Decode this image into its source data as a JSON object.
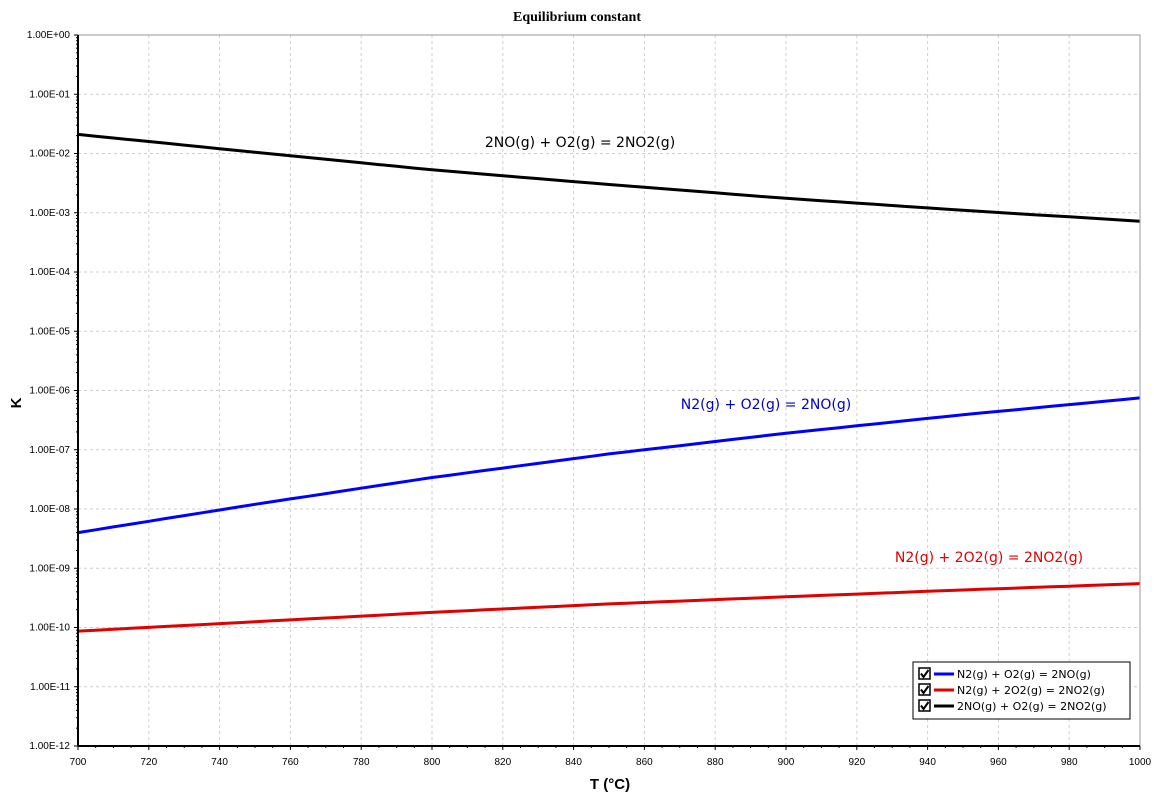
{
  "chart_data": {
    "type": "line",
    "title": "Equilibrium constant",
    "xlabel": "T (°C)",
    "ylabel": "K",
    "x_scale": "linear",
    "y_scale": "log",
    "xlim": [
      700,
      1000
    ],
    "ylim": [
      1e-12,
      1
    ],
    "x_ticks": [
      "700",
      "720",
      "740",
      "760",
      "780",
      "800",
      "820",
      "840",
      "860",
      "880",
      "900",
      "920",
      "940",
      "960",
      "980",
      "1000"
    ],
    "y_ticks": [
      "1.00E-12",
      "1.00E-11",
      "1.00E-10",
      "1.00E-09",
      "1.00E-08",
      "1.00E-07",
      "1.00E-06",
      "1.00E-05",
      "1.00E-04",
      "1.00E-03",
      "1.00E-02",
      "1.00E-01",
      "1.00E+00"
    ],
    "grid": true,
    "legend_position": "bottom-right",
    "series": [
      {
        "name": "N2(g) + O2(g) = 2NO(g)",
        "color": "#0000ff",
        "x": [
          700,
          750,
          800,
          850,
          900,
          950,
          1000
        ],
        "y": [
          4e-09,
          1.2e-08,
          3.4e-08,
          8.5e-08,
          1.9e-07,
          3.9e-07,
          7.5e-07
        ]
      },
      {
        "name": "N2(g) + 2O2(g) = 2NO2(g)",
        "color": "#e00000",
        "x": [
          700,
          750,
          800,
          850,
          900,
          950,
          1000
        ],
        "y": [
          8.7e-11,
          1.25e-10,
          1.8e-10,
          2.5e-10,
          3.3e-10,
          4.3e-10,
          5.5e-10
        ]
      },
      {
        "name": "2NO(g) + O2(g) = 2NO2(g)",
        "color": "#000000",
        "x": [
          700,
          750,
          800,
          850,
          900,
          950,
          1000
        ],
        "y": [
          0.021,
          0.0105,
          0.0053,
          0.003,
          0.00175,
          0.0011,
          0.00072
        ]
      }
    ],
    "annotations": [
      {
        "text": "2NO(g) + O2(g) = 2NO2(g)",
        "color": "#000000"
      },
      {
        "text": "N2(g) + O2(g) = 2NO(g)",
        "color": "#0000cc"
      },
      {
        "text": "N2(g) + 2O2(g) = 2NO2(g)",
        "color": "#e00000"
      }
    ]
  }
}
